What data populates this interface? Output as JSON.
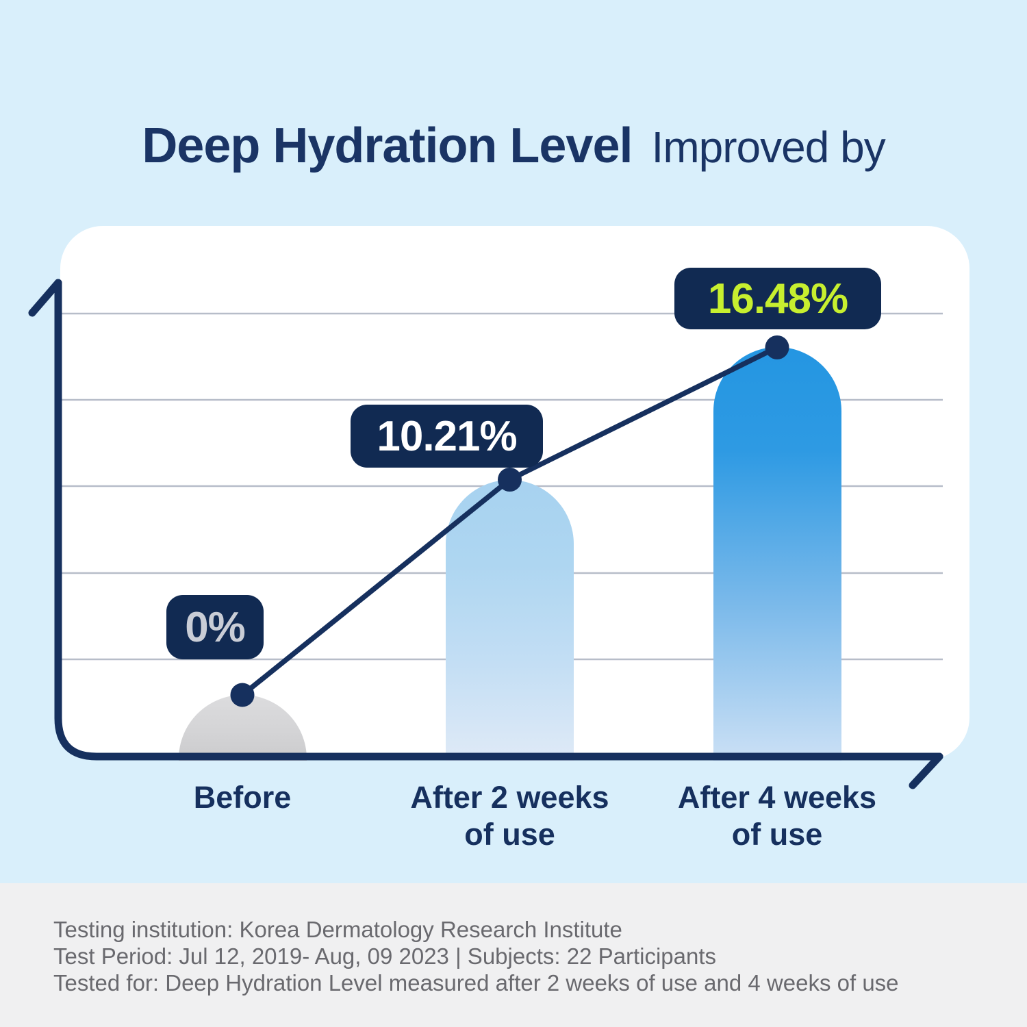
{
  "title": {
    "main": "Deep Hydration Level",
    "suffix": "Improved by"
  },
  "chart_data": {
    "type": "bar",
    "overlay": "line",
    "title": "Deep Hydration Level Improved by",
    "categories": [
      "Before",
      "After 2 weeks of use",
      "After 4 weeks of use"
    ],
    "category_lines": [
      [
        "Before"
      ],
      [
        "After 2 weeks",
        "of use"
      ],
      [
        "After 4 weeks",
        "of use"
      ]
    ],
    "values": [
      0,
      10.21,
      16.48
    ],
    "value_labels": [
      "0%",
      "10.21%",
      "16.48%"
    ],
    "unit": "%",
    "ylabel": "",
    "xlabel": "",
    "y_axis_tick_labels_shown": false,
    "gridlines": 5,
    "legend": "none"
  },
  "footer": {
    "lines": [
      "Testing institution: Korea Dermatology Research Institute",
      "Test Period: Jul 12, 2019- Aug, 09 2023  |  Subjects: 22 Participants",
      "Tested for: Deep Hydration Level measured after 2 weeks of use and 4 weeks of use"
    ]
  },
  "colors": {
    "background": "#d9effb",
    "card": "#ffffff",
    "navy": "#16305e",
    "badge_bg": "#112a52",
    "badge_text": [
      "#c9cdd6",
      "#ffffff",
      "#c7ef2f"
    ],
    "accent_lime": "#c7ef2f",
    "gridline": "#b7bdc9",
    "footer_bg": "#f0f0f1",
    "footer_text": "#69696e",
    "title_text": "#1a3465",
    "bar_gradients": [
      [
        "#dcdcde 0%",
        "#d4d4d6 55%",
        "#cbcbcd 100%"
      ],
      [
        "#a7d2f0 0%",
        "#aed6f1 30%",
        "#c3def4 65%",
        "#dfeaf7 100%"
      ],
      [
        "#2496e2 0%",
        "#2e9ae3 25%",
        "#7ab9ea 62%",
        "#cbe0f5 100%"
      ]
    ]
  }
}
